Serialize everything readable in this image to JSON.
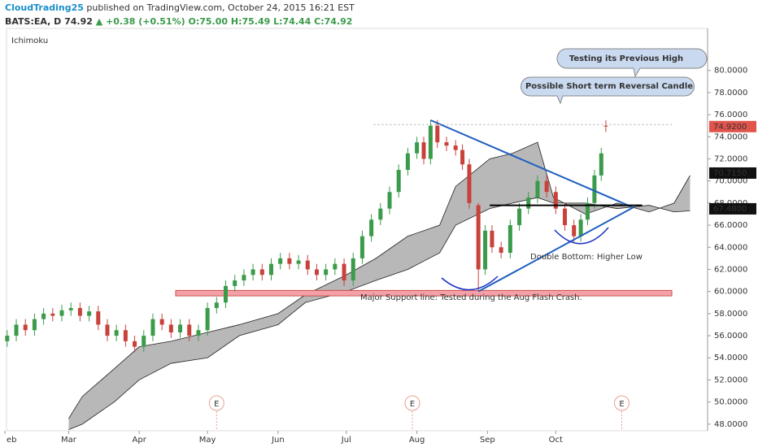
{
  "header": {
    "author": "CloudTrading25",
    "published": "published on TradingView.com, October 24, 2015 16:21 EST",
    "symbol": "BATS:EA, D",
    "last": "74.92",
    "change": "▲ +0.38 (+0.51%)",
    "ohlc": "O:75.00 H:75.49 L:74.44 C:74.92"
  },
  "chart_data": {
    "type": "candlestick",
    "indicator": "Ichimoku",
    "x": [
      33,
      37,
      41,
      45,
      49,
      53,
      57,
      61,
      65,
      69,
      73,
      77,
      81,
      85,
      89,
      93,
      97,
      101,
      105,
      109,
      113,
      117,
      121,
      125,
      129,
      133,
      137,
      141,
      145,
      149,
      153,
      157,
      161,
      165,
      169,
      173,
      177,
      181,
      185,
      189,
      193,
      197,
      201,
      205,
      209,
      213,
      216,
      219,
      222,
      226,
      230,
      233,
      236,
      240,
      243,
      246,
      250,
      254,
      258,
      262,
      266,
      270,
      274,
      278,
      282,
      285,
      288,
      291,
      294,
      296
    ],
    "open": [
      55.5,
      56.0,
      57.0,
      56.5,
      57.5,
      58.0,
      57.8,
      58.3,
      58.5,
      57.8,
      58.2,
      57.0,
      56.0,
      56.5,
      55.5,
      55.0,
      56.0,
      57.5,
      57.0,
      56.3,
      57.0,
      56.0,
      56.5,
      58.5,
      59.0,
      60.5,
      61.0,
      61.5,
      62.0,
      61.5,
      62.5,
      63.0,
      62.5,
      62.8,
      62.0,
      61.5,
      62.0,
      62.5,
      61.0,
      63.0,
      65.0,
      66.5,
      67.5,
      69.0,
      71.0,
      72.5,
      73.5,
      72.0,
      75.0,
      73.5,
      73.2,
      72.8,
      71.5,
      67.8,
      62.0,
      65.5,
      64.0,
      63.5,
      66.0,
      67.5,
      68.5,
      70.0,
      69.0,
      67.5,
      66.0,
      65.0,
      66.5,
      68.0,
      70.5,
      75.0
    ],
    "high": [
      56.5,
      57.5,
      57.5,
      58.0,
      58.5,
      58.5,
      58.8,
      59.0,
      59.0,
      58.7,
      58.7,
      57.5,
      57.0,
      57.0,
      56.0,
      56.5,
      58.0,
      58.0,
      57.5,
      57.5,
      57.5,
      57.0,
      59.0,
      59.5,
      61.0,
      61.5,
      62.0,
      62.5,
      62.5,
      63.0,
      63.5,
      63.5,
      63.3,
      63.3,
      62.5,
      62.5,
      63.0,
      63.0,
      63.5,
      65.5,
      67.0,
      68.0,
      69.5,
      71.5,
      73.0,
      74.0,
      74.0,
      75.5,
      75.5,
      74.0,
      73.7,
      73.3,
      72.0,
      68.0,
      66.0,
      66.0,
      64.5,
      66.5,
      68.0,
      69.0,
      70.5,
      70.5,
      69.5,
      68.0,
      66.5,
      67.0,
      68.5,
      71.0,
      73.0,
      75.49
    ],
    "low": [
      55.0,
      55.5,
      56.0,
      56.0,
      57.0,
      57.3,
      57.3,
      57.8,
      57.3,
      57.3,
      56.5,
      55.5,
      55.5,
      55.0,
      54.5,
      54.5,
      55.5,
      56.5,
      55.8,
      55.8,
      55.5,
      55.5,
      56.0,
      58.0,
      58.5,
      60.0,
      60.5,
      61.0,
      61.0,
      61.0,
      62.0,
      62.0,
      62.0,
      61.5,
      61.0,
      61.0,
      61.5,
      60.5,
      60.5,
      62.5,
      64.5,
      66.0,
      67.0,
      68.5,
      70.5,
      72.0,
      71.5,
      71.5,
      73.0,
      72.7,
      72.3,
      71.0,
      67.5,
      60.0,
      61.5,
      63.5,
      63.0,
      63.0,
      65.5,
      67.0,
      68.0,
      68.5,
      67.0,
      65.5,
      64.5,
      64.5,
      66.0,
      67.5,
      70.0,
      74.44
    ],
    "close": [
      56.0,
      57.0,
      56.5,
      57.5,
      58.0,
      57.8,
      58.3,
      58.5,
      57.8,
      58.2,
      57.0,
      56.0,
      56.5,
      55.5,
      55.0,
      56.0,
      57.5,
      57.0,
      56.3,
      57.0,
      56.0,
      56.5,
      58.5,
      59.0,
      60.5,
      61.0,
      61.5,
      62.0,
      61.5,
      62.5,
      63.0,
      62.5,
      62.8,
      62.0,
      61.5,
      62.0,
      62.5,
      61.0,
      63.0,
      65.0,
      66.5,
      67.5,
      69.0,
      71.0,
      72.5,
      73.5,
      72.0,
      75.0,
      73.5,
      73.2,
      72.8,
      71.5,
      68.0,
      62.0,
      65.5,
      64.0,
      63.5,
      66.0,
      67.5,
      68.5,
      70.0,
      69.0,
      67.5,
      66.0,
      65.0,
      66.5,
      68.0,
      70.5,
      72.5,
      74.92
    ],
    "up_color": "#3a9b4a",
    "down_color": "#c8413a",
    "cloud": {
      "x": [
        60,
        66,
        80,
        91,
        105,
        121,
        135,
        152,
        164,
        182,
        195,
        209,
        223,
        230,
        245,
        255,
        266,
        273,
        287,
        301,
        315,
        326,
        333
      ],
      "span_a": [
        48.5,
        50.5,
        53,
        55,
        55.5,
        56.3,
        57,
        58,
        59.7,
        61.5,
        63,
        65,
        66,
        69.5,
        72,
        72.5,
        73.5,
        68.5,
        67,
        68,
        67.2,
        68,
        70.5
      ],
      "span_b": [
        47.5,
        48,
        50,
        52,
        53.5,
        54,
        56,
        57,
        59,
        60,
        61,
        62,
        63.5,
        66,
        67.5,
        68,
        68.5,
        68,
        68,
        67.5,
        67.8,
        67.2,
        67.3
      ],
      "color": "#9a9a9a"
    },
    "lines": [
      {
        "x": [
          219,
          308
        ],
        "y": [
          75.5,
          67.6
        ],
        "color": "#1f5fbf"
      },
      {
        "x": [
          240,
          308
        ],
        "y": [
          60,
          67.6
        ],
        "color": "#1f5fbf"
      },
      {
        "x": [
          245,
          312
        ],
        "y": [
          67.8,
          67.8
        ],
        "color": "#000000"
      },
      {
        "x": [
          194,
          325
        ],
        "y": [
          75.1,
          75.1
        ],
        "color": "#aaaaaa",
        "dash": true
      }
    ],
    "support_zone": {
      "x": [
        107,
        325
      ],
      "y": [
        59.6,
        60.1
      ],
      "color": "#f4a0a8"
    },
    "earnings": {
      "x": [
        125,
        211,
        303
      ],
      "labels": [
        "E",
        "E",
        "E"
      ]
    },
    "annotations": [
      "Testing its Previous High",
      "Possible Short term Reversal Candle",
      "Double Bottom: Higher Low",
      "Major Support line: Tested during the Aug Flash Crash."
    ],
    "price_labels": [
      {
        "value": 74.92,
        "label": "74.9200",
        "color": "#e0544c"
      },
      {
        "value": 70.715,
        "label": "70.7150",
        "color": "#111111"
      },
      {
        "value": 67.48,
        "label": "67.4800",
        "color": "#111111"
      }
    ],
    "xlim": [
      32.7,
      340.7
    ],
    "ylim": [
      47.4,
      83.8
    ],
    "xticks": [
      {
        "value": 32,
        "label": "eb"
      },
      {
        "value": 60,
        "label": "Mar"
      },
      {
        "value": 91,
        "label": "Apr"
      },
      {
        "value": 121,
        "label": "May"
      },
      {
        "value": 152,
        "label": "Jun"
      },
      {
        "value": 182,
        "label": "Jul"
      },
      {
        "value": 213,
        "label": "Aug"
      },
      {
        "value": 244,
        "label": "Sep"
      },
      {
        "value": 274,
        "label": "Oct"
      }
    ],
    "yticks": [
      {
        "value": 48,
        "label": "48.0000"
      },
      {
        "value": 50,
        "label": "50.0000"
      },
      {
        "value": 52,
        "label": "52.0000"
      },
      {
        "value": 54,
        "label": "54.0000"
      },
      {
        "value": 56,
        "label": "56.0000"
      },
      {
        "value": 58,
        "label": "58.0000"
      },
      {
        "value": 60,
        "label": "60.0000"
      },
      {
        "value": 62,
        "label": "62.0000"
      },
      {
        "value": 64,
        "label": "64.0000"
      },
      {
        "value": 66,
        "label": "66.0000"
      },
      {
        "value": 68,
        "label": "68.0000"
      },
      {
        "value": 70,
        "label": "70.0000"
      },
      {
        "value": 72,
        "label": "72.0000"
      },
      {
        "value": 74,
        "label": "74.0000"
      },
      {
        "value": 76,
        "label": "76.0000"
      },
      {
        "value": 78,
        "label": "78.0000"
      },
      {
        "value": 80,
        "label": "80.0000"
      }
    ]
  }
}
